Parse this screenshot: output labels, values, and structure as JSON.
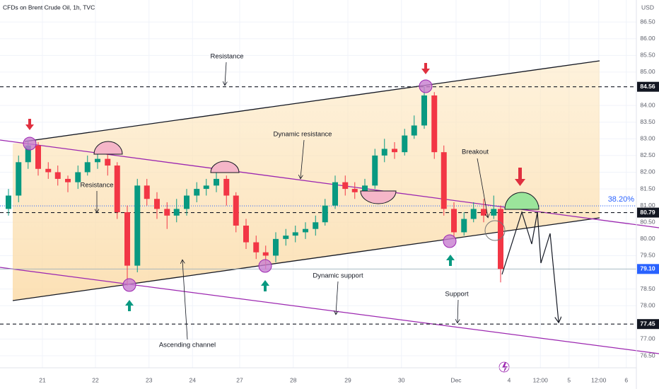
{
  "chart_data": {
    "type": "candlestick",
    "title": "CFDs on Brent Crude Oil, 1h, TVC",
    "currency": "USD",
    "xlim": [
      20.2,
      32.2
    ],
    "ylim": [
      76.14,
      87.16
    ],
    "xticks": [
      21,
      22,
      {
        "value": 23.01,
        "label": "23"
      },
      {
        "value": 23.83,
        "label": "24"
      },
      {
        "value": 24.72,
        "label": "27"
      },
      {
        "value": 25.73,
        "label": "28"
      },
      {
        "value": 26.76,
        "label": "29"
      },
      {
        "value": 27.77,
        "label": "30"
      },
      {
        "value": 28.8,
        "label": "Dec"
      },
      {
        "value": 29.8,
        "label": "4"
      },
      {
        "value": 30.39,
        "label": "12:00"
      },
      {
        "value": 30.93,
        "label": "5"
      },
      {
        "value": 31.49,
        "label": "12:00"
      },
      {
        "value": 32.01,
        "label": "6"
      }
    ],
    "yticks": [
      {
        "value": 86.5,
        "label": "86.50"
      },
      {
        "value": 86,
        "label": "86.00"
      },
      {
        "value": 85.5,
        "label": "85.50"
      },
      {
        "value": 85,
        "label": "85.00"
      },
      {
        "value": 84,
        "label": "84.00"
      },
      {
        "value": 83.5,
        "label": "83.50"
      },
      {
        "value": 83,
        "label": "83.00"
      },
      {
        "value": 82.5,
        "label": "82.50"
      },
      {
        "value": 82,
        "label": "82.00"
      },
      {
        "value": 81.5,
        "label": "81.50"
      },
      {
        "value": 81,
        "label": "81.00"
      },
      {
        "value": 80.5,
        "label": "80.50"
      },
      {
        "value": 80,
        "label": "80.00"
      },
      {
        "value": 79.5,
        "label": "79.50"
      },
      {
        "value": 78.5,
        "label": "78.50"
      },
      {
        "value": 78,
        "label": "78.00"
      },
      {
        "value": 77,
        "label": "77.00"
      },
      {
        "value": 76.5,
        "label": "76.50"
      }
    ],
    "up_color": "#089981",
    "down_color": "#f23645",
    "x": [
      20.36,
      20.55,
      20.73,
      20.92,
      21.11,
      21.29,
      21.48,
      21.67,
      21.85,
      22.04,
      22.23,
      22.41,
      22.6,
      22.79,
      22.97,
      23.16,
      23.35,
      23.53,
      23.72,
      23.91,
      24.09,
      24.28,
      24.47,
      24.65,
      24.84,
      25.03,
      25.21,
      25.4,
      25.59,
      25.77,
      25.96,
      26.15,
      26.33,
      26.52,
      26.71,
      26.89,
      27.08,
      27.27,
      27.45,
      27.64,
      27.83,
      28.01,
      28.2,
      28.39,
      28.57,
      28.76,
      28.95,
      29.13,
      29.32,
      29.51,
      29.64
    ],
    "open": [
      80.9,
      81.3,
      82.3,
      82.8,
      82.1,
      82.0,
      81.8,
      81.7,
      82.0,
      82.3,
      82.4,
      82.2,
      80.8,
      79.2,
      81.6,
      81.2,
      80.9,
      80.7,
      80.9,
      81.3,
      81.5,
      81.6,
      81.8,
      81.3,
      80.4,
      79.9,
      79.6,
      79.5,
      80.0,
      80.1,
      80.2,
      80.3,
      80.5,
      81.0,
      81.7,
      81.5,
      81.4,
      81.6,
      82.5,
      82.7,
      82.6,
      83.1,
      83.4,
      84.3,
      82.6,
      80.9,
      80.2,
      80.6,
      80.9,
      80.7,
      80.9
    ],
    "high": [
      81.5,
      82.5,
      82.95,
      82.9,
      82.3,
      82.2,
      81.9,
      82.2,
      82.5,
      82.6,
      82.6,
      82.3,
      81.0,
      81.8,
      81.8,
      81.4,
      81.1,
      81.2,
      81.5,
      81.7,
      81.8,
      82.1,
      81.9,
      81.4,
      80.6,
      80.1,
      79.8,
      80.2,
      80.3,
      80.4,
      80.5,
      80.7,
      81.2,
      81.9,
      81.9,
      81.7,
      81.8,
      82.7,
      83.0,
      82.9,
      83.3,
      83.7,
      84.56,
      84.4,
      82.8,
      81.1,
      80.8,
      81.1,
      81.2,
      81.3,
      81.0
    ],
    "low": [
      80.7,
      81.1,
      82.1,
      81.9,
      81.8,
      81.6,
      81.4,
      81.5,
      81.9,
      82.1,
      81.9,
      80.6,
      78.6,
      79.0,
      81.0,
      80.6,
      80.3,
      80.5,
      80.7,
      81.1,
      81.3,
      81.4,
      81.0,
      80.2,
      79.7,
      79.4,
      79.1,
      79.3,
      79.8,
      79.9,
      80.0,
      80.1,
      80.4,
      80.9,
      81.3,
      81.2,
      81.2,
      81.5,
      82.3,
      82.4,
      82.5,
      83.0,
      83.3,
      82.4,
      80.7,
      80.0,
      80.1,
      80.5,
      80.5,
      80.6,
      78.7
    ],
    "close": [
      81.3,
      82.3,
      82.8,
      82.1,
      82.0,
      81.8,
      81.7,
      82.0,
      82.3,
      82.4,
      82.2,
      80.8,
      79.2,
      81.6,
      81.2,
      80.9,
      80.7,
      80.9,
      81.3,
      81.5,
      81.6,
      81.8,
      81.3,
      80.4,
      79.9,
      79.6,
      79.5,
      80.0,
      80.1,
      80.2,
      80.3,
      80.5,
      81.0,
      81.7,
      81.5,
      81.4,
      81.6,
      82.5,
      82.7,
      82.6,
      83.1,
      83.4,
      84.3,
      82.6,
      80.9,
      80.2,
      80.6,
      80.9,
      80.7,
      80.9,
      79.1
    ],
    "price_levels": [
      84.56,
      80.79,
      {
        "value": 79.1,
        "label": "79.10"
      },
      77.45
    ],
    "fib_level": {
      "value": 80.99,
      "label": "38.20%",
      "color": "#2962ff"
    },
    "annotations": [
      "Resistance",
      "Dynamic resistance",
      "Resistance",
      "Breakout",
      "Dynamic support",
      "Support",
      "Ascending channel"
    ]
  }
}
